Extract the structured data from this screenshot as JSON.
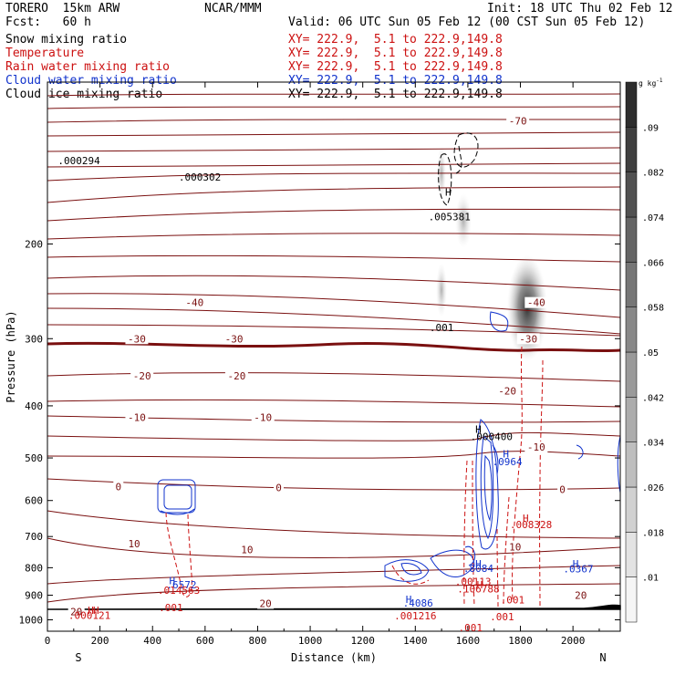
{
  "header": {
    "model": "TORERO  15km ARW",
    "center": "NCAR/MMM",
    "init": "Init: 18 UTC Thu 02 Feb 12",
    "fcst": "Fcst:   60 h",
    "valid": "Valid: 06 UTC Sun 05 Feb 12 (00 CST Sun 05 Feb 12)"
  },
  "fields": [
    {
      "name": "Snow mixing ratio",
      "xy": "",
      "color": "#000000"
    },
    {
      "name": "Temperature",
      "xy": "XY= 222.9,  5.1 to 222.9,149.8",
      "color": "#cc1111"
    },
    {
      "name": "Rain water mixing ratio",
      "xy": "XY= 222.9,  5.1 to 222.9,149.8",
      "color": "#cc1111"
    },
    {
      "name": "Cloud water mixing ratio",
      "xy": "XY= 222.9,  5.1 to 222.9,149.8",
      "color": "#1133cc"
    },
    {
      "name": "Cloud ice mixing ratio",
      "xy": "XY= 222.9,  5.1 to 222.9,149.8",
      "color": "#000000"
    }
  ],
  "first_xy": "XY= 222.9,  5.1 to 222.9,149.8",
  "chart_data": {
    "type": "contour-cross-section",
    "xlabel": "Distance (km)",
    "ylabel": "Pressure (hPa)",
    "xlim": [
      0,
      2180
    ],
    "ylim": [
      1050,
      100
    ],
    "x_ticks": [
      0,
      200,
      400,
      600,
      800,
      1000,
      1200,
      1400,
      1600,
      1800,
      2000
    ],
    "y_ticks": [
      200,
      300,
      400,
      500,
      600,
      700,
      800,
      900,
      1000
    ],
    "x_end_labels": {
      "left": "S",
      "right": "N"
    },
    "colorbar": {
      "unit": "g kg",
      "unit_exp": "-1",
      "levels": [
        ".01",
        ".018",
        ".026",
        ".034",
        ".042",
        ".05",
        ".058",
        ".066",
        ".074",
        ".082",
        ".09"
      ]
    },
    "temperature_labels": [
      {
        "text": "-70",
        "x": 1790,
        "p": 118
      },
      {
        "text": "-40",
        "x": 560,
        "p": 257
      },
      {
        "text": "-40",
        "x": 1860,
        "p": 257
      },
      {
        "text": "-30",
        "x": 340,
        "p": 300
      },
      {
        "text": "-30",
        "x": 710,
        "p": 300
      },
      {
        "text": "-30",
        "x": 1830,
        "p": 300
      },
      {
        "text": "-20",
        "x": 360,
        "p": 352
      },
      {
        "text": "-20",
        "x": 720,
        "p": 352
      },
      {
        "text": "-20",
        "x": 1750,
        "p": 375
      },
      {
        "text": "-10",
        "x": 340,
        "p": 420
      },
      {
        "text": "-10",
        "x": 820,
        "p": 420
      },
      {
        "text": "-10",
        "x": 1860,
        "p": 477
      },
      {
        "text": "0",
        "x": 270,
        "p": 565
      },
      {
        "text": "0",
        "x": 880,
        "p": 568
      },
      {
        "text": "0",
        "x": 1960,
        "p": 572
      },
      {
        "text": "10",
        "x": 330,
        "p": 722
      },
      {
        "text": "10",
        "x": 760,
        "p": 740
      },
      {
        "text": "10",
        "x": 1780,
        "p": 731
      },
      {
        "text": "20",
        "x": 830,
        "p": 932
      },
      {
        "text": "20",
        "x": 2030,
        "p": 900
      },
      {
        "text": "20",
        "x": 110,
        "p": 966
      }
    ],
    "maxima": [
      {
        "text": ".000294",
        "x": 120,
        "p": 140,
        "color": "#000000"
      },
      {
        "text": ".000302",
        "x": 580,
        "p": 150,
        "color": "#000000"
      },
      {
        "text": ".005381",
        "x": 1530,
        "p": 178,
        "color": "#000000"
      },
      {
        "text": ".001",
        "x": 1500,
        "p": 286,
        "color": "#000000"
      },
      {
        "text": ".000400",
        "x": 1690,
        "p": 456,
        "color": "#000000"
      },
      {
        "text": ".0964",
        "x": 1750,
        "p": 508,
        "color": "#1133cc"
      },
      {
        "text": ".008328",
        "x": 1840,
        "p": 665,
        "color": "#cc1111"
      },
      {
        "text": ".0367",
        "x": 2020,
        "p": 803,
        "color": "#1133cc"
      },
      {
        "text": ".8084",
        "x": 1640,
        "p": 802,
        "color": "#1133cc"
      },
      {
        "text": ".6572",
        "x": 510,
        "p": 860,
        "color": "#1133cc"
      },
      {
        "text": ".014563",
        "x": 500,
        "p": 880,
        "color": "#cc1111"
      },
      {
        "text": ".00113",
        "x": 1620,
        "p": 848,
        "color": "#cc1111"
      },
      {
        "text": ".106788",
        "x": 1640,
        "p": 875,
        "color": "#cc1111"
      },
      {
        "text": ".4086",
        "x": 1410,
        "p": 931,
        "color": "#1133cc"
      },
      {
        "text": ".001216",
        "x": 1400,
        "p": 982,
        "color": "#cc1111"
      },
      {
        "text": ".000121",
        "x": 160,
        "p": 980,
        "color": "#cc1111"
      },
      {
        "text": ".001",
        "x": 470,
        "p": 948,
        "color": "#cc1111"
      },
      {
        "text": ".001",
        "x": 1770,
        "p": 918,
        "color": "#cc1111"
      },
      {
        "text": ".001",
        "x": 1730,
        "p": 986,
        "color": "#cc1111"
      },
      {
        "text": ".001",
        "x": 1610,
        "p": 1034,
        "color": "#cc1111"
      }
    ],
    "h_markers": [
      {
        "x": 1525,
        "p": 160,
        "color": "#000000"
      },
      {
        "x": 1640,
        "p": 442,
        "color": "#000000"
      },
      {
        "x": 1745,
        "p": 491,
        "color": "#1133cc"
      },
      {
        "x": 1820,
        "p": 647,
        "color": "#cc1111"
      },
      {
        "x": 2010,
        "p": 786,
        "color": "#1133cc"
      },
      {
        "x": 1640,
        "p": 786,
        "color": "#1133cc"
      },
      {
        "x": 475,
        "p": 845,
        "color": "#1133cc"
      },
      {
        "x": 1645,
        "p": 860,
        "color": "#cc1111"
      },
      {
        "x": 1375,
        "p": 915,
        "color": "#1133cc"
      },
      {
        "x": 165,
        "p": 960,
        "color": "#cc1111"
      },
      {
        "x": 185,
        "p": 960,
        "color": "#cc1111"
      }
    ]
  }
}
